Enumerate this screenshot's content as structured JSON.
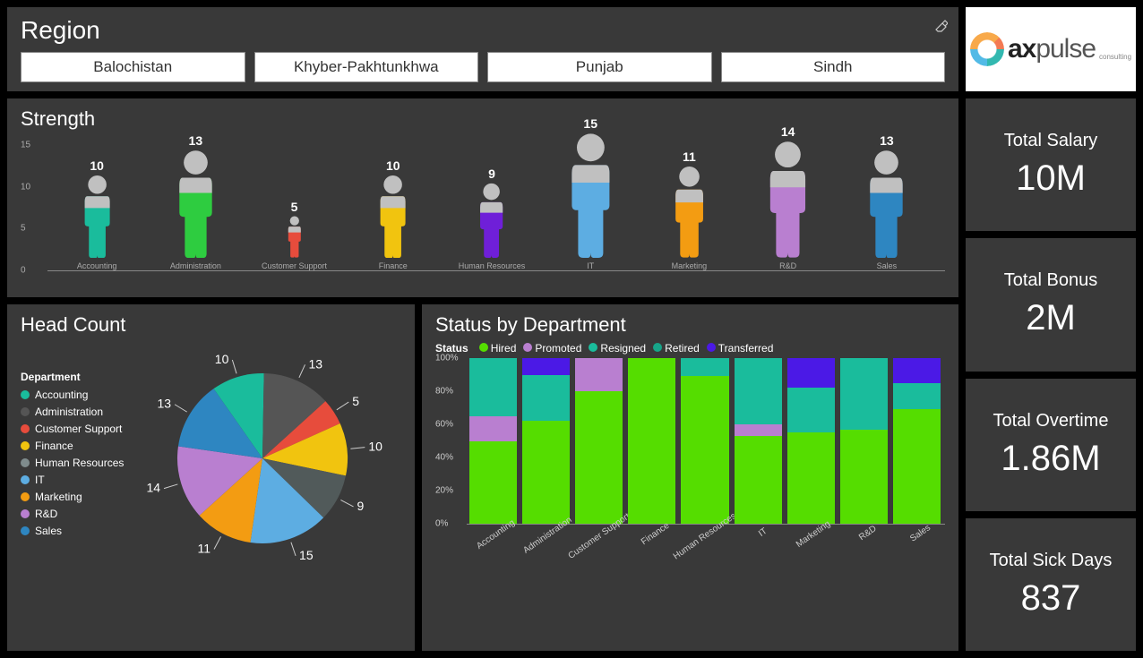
{
  "region": {
    "title": "Region",
    "buttons": [
      "Balochistan",
      "Khyber-Pakhtunkhwa",
      "Punjab",
      "Sindh"
    ]
  },
  "logo": {
    "brand_bold": "ax",
    "brand_rest": "pulse",
    "sub": "consulting"
  },
  "strength": {
    "title": "Strength",
    "ymax": 15,
    "yticks": [
      0,
      5,
      10,
      15
    ],
    "axis_color": "#888888",
    "tick_label_color": "#aaaaaa",
    "value_label_color": "#ffffff",
    "head_color": "#c0c0c0",
    "items": [
      {
        "label": "Accounting",
        "value": 10,
        "color": "#1abc9c"
      },
      {
        "label": "Administration",
        "value": 13,
        "color": "#2ecc40"
      },
      {
        "label": "Customer Support",
        "value": 5,
        "color": "#e74c3c"
      },
      {
        "label": "Finance",
        "value": 10,
        "color": "#f1c40f"
      },
      {
        "label": "Human Resources",
        "value": 9,
        "color": "#6f1fd8"
      },
      {
        "label": "IT",
        "value": 15,
        "color": "#5dade2"
      },
      {
        "label": "Marketing",
        "value": 11,
        "color": "#f39c12"
      },
      {
        "label": "R&D",
        "value": 14,
        "color": "#b97fd0"
      },
      {
        "label": "Sales",
        "value": 13,
        "color": "#2e86c1"
      }
    ]
  },
  "headcount": {
    "title": "Head Count",
    "legend_title": "Department",
    "legend": [
      {
        "label": "Accounting",
        "color": "#1abc9c"
      },
      {
        "label": "Administration",
        "color": "#555555"
      },
      {
        "label": "Customer Support",
        "color": "#e74c3c"
      },
      {
        "label": "Finance",
        "color": "#f1c40f"
      },
      {
        "label": "Human Resources",
        "color": "#7f8c8d"
      },
      {
        "label": "IT",
        "color": "#5dade2"
      },
      {
        "label": "Marketing",
        "color": "#f39c12"
      },
      {
        "label": "R&D",
        "color": "#b97fd0"
      },
      {
        "label": "Sales",
        "color": "#2e86c1"
      }
    ],
    "pie": {
      "order_clockwise_from_top": [
        "Accounting",
        "Administration",
        "Customer Support",
        "Finance",
        "Human Resources",
        "IT",
        "Marketing",
        "R&D",
        "Sales"
      ],
      "values": {
        "Accounting": 10,
        "Administration": 13,
        "Customer Support": 5,
        "Finance": 10,
        "Human Resources": 9,
        "IT": 15,
        "Marketing": 11,
        "R&D": 14,
        "Sales": 13
      },
      "colors": {
        "Accounting": "#1abc9c",
        "Administration": "#555555",
        "Customer Support": "#e74c3c",
        "Finance": "#f1c40f",
        "Human Resources": "#515a5a",
        "IT": "#5dade2",
        "Marketing": "#f39c12",
        "R&D": "#b97fd0",
        "Sales": "#2e86c1"
      },
      "callout_labels": [
        "10",
        "13",
        "5",
        "10",
        "9",
        "15",
        "11",
        "14",
        "13"
      ],
      "callout_color": "#ffffff",
      "start_angle_deg": -35
    }
  },
  "status": {
    "title": "Status by Department",
    "legend_title": "Status",
    "series": [
      {
        "label": "Hired",
        "color": "#55dd00"
      },
      {
        "label": "Promoted",
        "color": "#b97fd0"
      },
      {
        "label": "Resigned",
        "color": "#1abc9c"
      },
      {
        "label": "Retired",
        "color": "#17a589"
      },
      {
        "label": "Transferred",
        "color": "#4b19e6"
      }
    ],
    "yticks": [
      "0%",
      "20%",
      "40%",
      "60%",
      "80%",
      "100%"
    ],
    "columns": [
      {
        "label": "Accounting",
        "stack": [
          50,
          15,
          35,
          0,
          0
        ]
      },
      {
        "label": "Administration",
        "stack": [
          62,
          0,
          28,
          0,
          10
        ]
      },
      {
        "label": "Customer Support",
        "stack": [
          80,
          20,
          0,
          0,
          0
        ]
      },
      {
        "label": "Finance",
        "stack": [
          100,
          0,
          0,
          0,
          0
        ]
      },
      {
        "label": "Human Resources",
        "stack": [
          89,
          0,
          11,
          0,
          0
        ]
      },
      {
        "label": "IT",
        "stack": [
          53,
          7,
          40,
          0,
          0
        ]
      },
      {
        "label": "Marketing",
        "stack": [
          55,
          0,
          27,
          0,
          18
        ]
      },
      {
        "label": "R&D",
        "stack": [
          57,
          0,
          43,
          0,
          0
        ]
      },
      {
        "label": "Sales",
        "stack": [
          69,
          0,
          16,
          0,
          15
        ]
      }
    ]
  },
  "kpis": [
    {
      "label": "Total Salary",
      "value": "10M"
    },
    {
      "label": "Total Bonus",
      "value": "2M"
    },
    {
      "label": "Total Overtime",
      "value": "1.86M"
    },
    {
      "label": "Total Sick Days",
      "value": "837"
    }
  ],
  "colors": {
    "panel_bg": "#393939",
    "page_bg": "#000000",
    "text": "#ffffff"
  }
}
